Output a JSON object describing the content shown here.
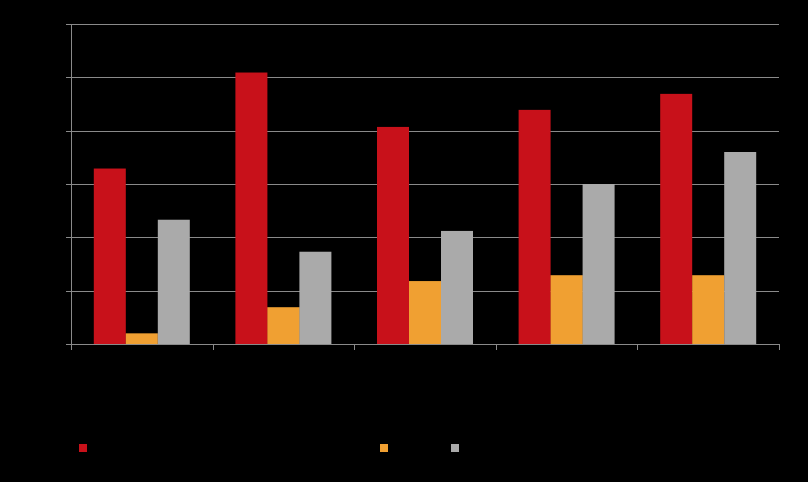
{
  "chart_data": {
    "type": "bar",
    "title": "",
    "xlabel": "",
    "ylabel": "",
    "categories": [
      "",
      "",
      "",
      "",
      ""
    ],
    "ylim": [
      0,
      6
    ],
    "y_ticks": [
      0,
      1,
      2,
      3,
      4,
      5,
      6
    ],
    "grid": true,
    "legend_position": "bottom",
    "series": [
      {
        "color": "#c8111a",
        "values": [
          3.29,
          5.09,
          4.07,
          4.39,
          4.69
        ]
      },
      {
        "color": "#f0a032",
        "values": [
          0.2,
          0.69,
          1.18,
          1.29,
          1.29
        ]
      },
      {
        "color": "#aaaaaa",
        "values": [
          2.33,
          1.73,
          2.12,
          3.0,
          3.6
        ]
      }
    ]
  }
}
